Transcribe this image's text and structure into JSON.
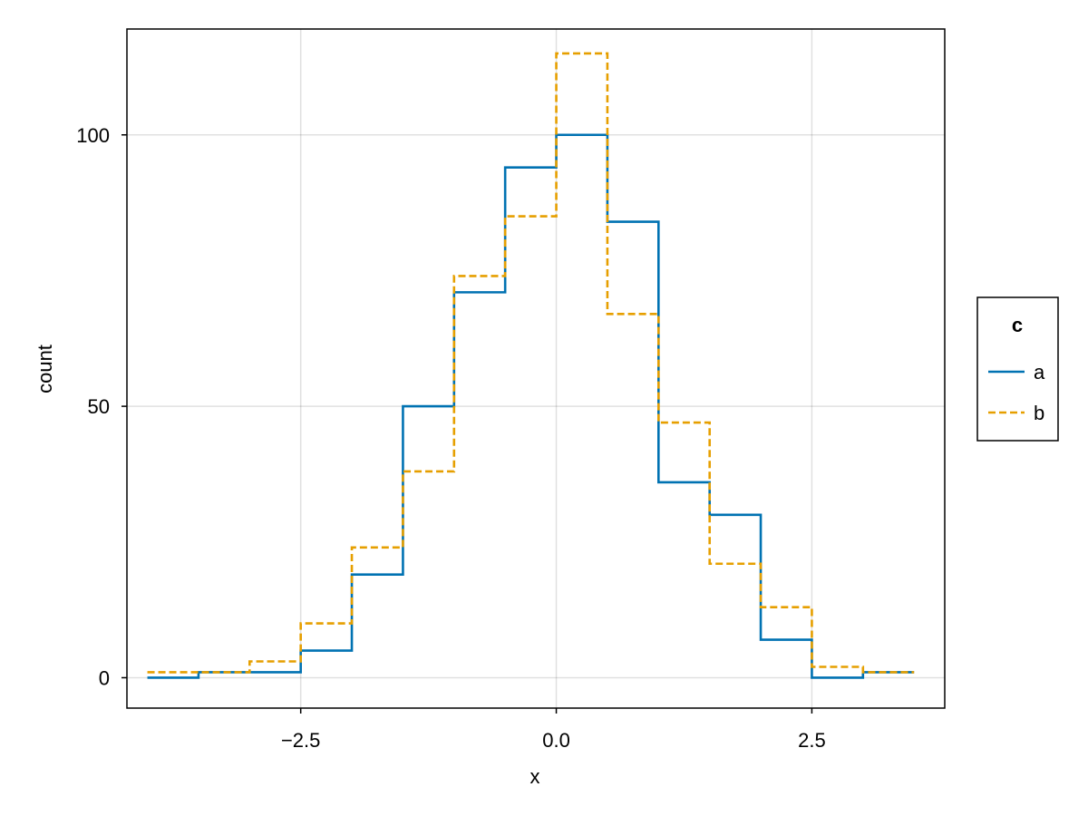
{
  "chart_data": {
    "type": "line",
    "subtype": "step-histogram",
    "title": "",
    "xlabel": "x",
    "ylabel": "count",
    "xlim": [
      -4.2,
      3.8
    ],
    "ylim": [
      -5.6,
      119.5
    ],
    "x_ticks": [
      -2.5,
      0.0,
      2.5
    ],
    "x_tick_labels": [
      "−2.5",
      "0.0",
      "2.5"
    ],
    "y_ticks": [
      0,
      50,
      100
    ],
    "y_tick_labels": [
      "0",
      "50",
      "100"
    ],
    "grid": true,
    "legend": {
      "title": "c",
      "placement": "right",
      "entries": [
        {
          "label": "a",
          "color": "#0072b2",
          "style": "solid"
        },
        {
          "label": "b",
          "color": "#e69f00",
          "style": "dashed"
        }
      ]
    },
    "bin_edges": [
      -4.0,
      -3.5,
      -3.0,
      -2.5,
      -2.0,
      -1.5,
      -1.0,
      -0.5,
      0.0,
      0.5,
      1.0,
      1.5,
      2.0,
      2.5,
      3.0,
      3.5
    ],
    "series": [
      {
        "name": "a",
        "color": "#0072b2",
        "style": "solid",
        "values": [
          0,
          1,
          1,
          5,
          19,
          50,
          71,
          94,
          100,
          84,
          36,
          30,
          7,
          0,
          1
        ]
      },
      {
        "name": "b",
        "color": "#e69f00",
        "style": "dashed",
        "values": [
          1,
          1,
          3,
          10,
          24,
          38,
          74,
          85,
          115,
          67,
          47,
          21,
          13,
          2,
          1
        ]
      }
    ]
  }
}
